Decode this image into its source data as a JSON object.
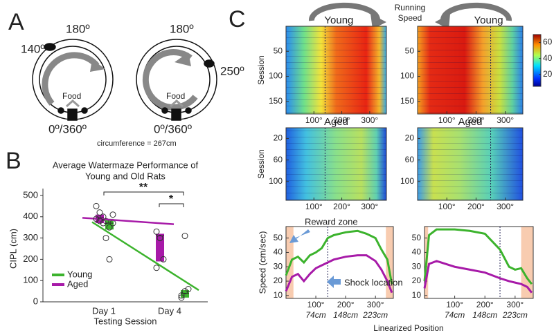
{
  "panel_labels": [
    "A",
    "B",
    "C"
  ],
  "panel_a": {
    "left": {
      "top": "180º",
      "side": "140º",
      "food": "Food",
      "bottom": "0º/360º"
    },
    "right": {
      "top": "180º",
      "side": "250º",
      "food": "Food",
      "bottom": "0º/360º"
    },
    "caption": "circumference = 267cm"
  },
  "speed_title": [
    "Running",
    "Speed"
  ],
  "chart_data": [
    {
      "type": "box",
      "title": [
        "Average Watermaze Performance of",
        "Young and Old Rats"
      ],
      "xlabel": "Testing Session",
      "ylabel": "CIPL (cm)",
      "categories": [
        "Day 1",
        "Day 4"
      ],
      "ylim": [
        0,
        500
      ],
      "yticks": [
        0,
        100,
        200,
        300,
        400,
        500
      ],
      "series": [
        {
          "name": "Young",
          "color": "#3cb32d",
          "q1": [
            340,
            20
          ],
          "median": [
            370,
            40
          ],
          "q3": [
            390,
            55
          ],
          "values": [
            375,
            55
          ],
          "points": [
            [
              300,
              350,
              370,
              380,
              200,
              410
            ],
            [
              30,
              50,
              60,
              20,
              310
            ]
          ]
        },
        {
          "name": "Aged",
          "color": "#a71aa8",
          "q1": [
            370,
            190
          ],
          "median": [
            395,
            310
          ],
          "q3": [
            410,
            320
          ],
          "values": [
            395,
            365
          ],
          "points": [
            [
              450,
              420,
              400,
              390,
              380,
              370
            ],
            [
              330,
              300,
              200,
              160,
              300
            ]
          ]
        }
      ],
      "annotations": [
        "**",
        "*"
      ]
    },
    {
      "type": "heatmap",
      "title": "Young",
      "ylabel": "Session",
      "xlim": [
        0,
        360
      ],
      "ylim": [
        0,
        175
      ],
      "yticks": [
        50,
        100,
        150
      ],
      "xticks": [
        {
          "value": 100,
          "label": "100°"
        },
        {
          "value": 200,
          "label": "200°"
        },
        {
          "value": 300,
          "label": "300°"
        }
      ],
      "shock": 140
    },
    {
      "type": "heatmap",
      "title": "Young",
      "xlim": [
        0,
        360
      ],
      "ylim": [
        0,
        175
      ],
      "yticks": [
        50,
        100,
        150
      ],
      "xticks": [
        {
          "value": 100,
          "label": "100°"
        },
        {
          "value": 200,
          "label": "200°"
        },
        {
          "value": 300,
          "label": "300°"
        }
      ],
      "shock": 250
    },
    {
      "type": "heatmap",
      "title": "Aged",
      "ylabel": "Session",
      "xlim": [
        0,
        360
      ],
      "ylim": [
        0,
        135
      ],
      "yticks": [
        20,
        60,
        100
      ],
      "xticks": [
        {
          "value": 100,
          "label": "100°"
        },
        {
          "value": 200,
          "label": "200°"
        },
        {
          "value": 300,
          "label": "300°"
        }
      ],
      "shock": 140
    },
    {
      "type": "heatmap",
      "title": "Aged",
      "xlim": [
        0,
        360
      ],
      "ylim": [
        0,
        135
      ],
      "yticks": [
        20,
        60,
        100
      ],
      "xticks": [
        {
          "value": 100,
          "label": "100°"
        },
        {
          "value": 200,
          "label": "200°"
        },
        {
          "value": 300,
          "label": "300°"
        }
      ],
      "shock": 250
    },
    {
      "type": "colorbar",
      "ylim": [
        5,
        70
      ],
      "yticks": [
        20,
        40,
        60
      ]
    },
    {
      "type": "line",
      "ylabel": "Speed (cm/sec)",
      "xlabel": "Linearized Position",
      "xlim": [
        0,
        360
      ],
      "ylim": [
        8,
        58
      ],
      "yticks": [
        10,
        20,
        30,
        40,
        50
      ],
      "xticks": [
        {
          "value": 100,
          "label": "100°"
        },
        {
          "value": 200,
          "label": "200°"
        },
        {
          "value": 300,
          "label": "300°"
        }
      ],
      "xticks_cm": [
        {
          "value": 100,
          "label": "74cm"
        },
        {
          "value": 200,
          "label": "148cm"
        },
        {
          "value": 300,
          "label": "223cm"
        }
      ],
      "zones": [
        [
          0,
          25
        ],
        [
          335,
          360
        ]
      ],
      "shock": 140,
      "annotations": [
        "Reward zone",
        "Shock location"
      ],
      "x": [
        0,
        20,
        40,
        60,
        80,
        100,
        120,
        140,
        160,
        200,
        240,
        270,
        300,
        320,
        340,
        355
      ],
      "series": [
        {
          "name": "Young",
          "color": "#3cb32d",
          "values": [
            24,
            35,
            37,
            33,
            38,
            40,
            43,
            50,
            52,
            54,
            55,
            53,
            50,
            42,
            35,
            18
          ]
        },
        {
          "name": "Aged",
          "color": "#a71aa8",
          "values": [
            13,
            23,
            25,
            20,
            25,
            29,
            31,
            33,
            35,
            37,
            38,
            38,
            34,
            28,
            20,
            12
          ]
        }
      ]
    },
    {
      "type": "line",
      "xlim": [
        0,
        360
      ],
      "ylim": [
        8,
        58
      ],
      "yticks": [
        10,
        20,
        30,
        40,
        50
      ],
      "xticks": [
        {
          "value": 100,
          "label": "100°"
        },
        {
          "value": 200,
          "label": "200°"
        },
        {
          "value": 300,
          "label": "300°"
        }
      ],
      "xticks_cm": [
        {
          "value": 100,
          "label": "74cm"
        },
        {
          "value": 200,
          "label": "148cm"
        },
        {
          "value": 300,
          "label": "223cm"
        }
      ],
      "zones": [
        [
          0,
          12
        ],
        [
          320,
          360
        ]
      ],
      "shock": 250,
      "x": [
        0,
        15,
        40,
        100,
        150,
        200,
        250,
        280,
        300,
        320,
        340,
        355
      ],
      "series": [
        {
          "name": "Young",
          "color": "#3cb32d",
          "values": [
            20,
            52,
            56,
            56,
            55,
            53,
            42,
            30,
            28,
            29,
            22,
            18
          ]
        },
        {
          "name": "Aged",
          "color": "#a71aa8",
          "values": [
            15,
            32,
            34,
            30,
            28,
            26,
            22,
            20,
            19,
            18,
            16,
            12
          ]
        }
      ]
    }
  ]
}
